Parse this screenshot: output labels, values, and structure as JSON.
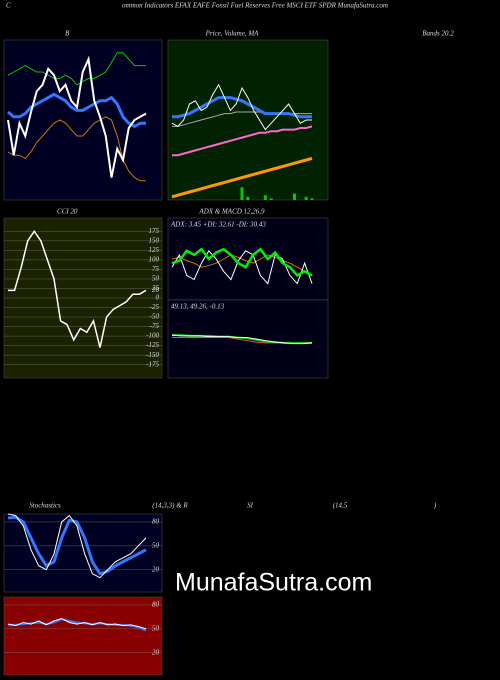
{
  "header": {
    "c": "C",
    "title": "ommon Indicators EFAX EAFE Fossil Fuel Reserves Free MSCI ETF SPDR MunafaSutra.com",
    "bands": "Bands 20.2",
    "watermark": "MunafaSutra.com",
    "stoch_title": [
      "Stochastics",
      "(14,3,3) & R",
      "SI",
      "(14,5",
      ")"
    ]
  },
  "chart_data": [
    {
      "type": "line",
      "title": "B",
      "background": "#000022",
      "ylim": [
        0,
        100
      ],
      "series": [
        {
          "color": "#00cc00",
          "width": 1,
          "values": [
            78,
            80,
            82,
            84,
            82,
            80,
            80,
            78,
            76,
            76,
            78,
            76,
            72,
            74,
            76,
            76,
            78,
            80,
            86,
            92,
            92,
            88,
            84,
            84,
            84
          ]
        },
        {
          "color": "#cc7700",
          "width": 1,
          "values": [
            30,
            28,
            28,
            26,
            30,
            36,
            40,
            44,
            48,
            50,
            48,
            44,
            40,
            40,
            44,
            48,
            50,
            52,
            50,
            40,
            25,
            18,
            14,
            12,
            12
          ]
        },
        {
          "color": "#3377ff",
          "width": 3,
          "values": [
            55,
            52,
            52,
            54,
            58,
            60,
            62,
            64,
            66,
            64,
            62,
            58,
            56,
            56,
            58,
            60,
            62,
            62,
            64,
            60,
            52,
            48,
            46,
            48,
            48
          ]
        },
        {
          "color": "#ffffff",
          "width": 2,
          "values": [
            50,
            28,
            48,
            40,
            55,
            68,
            72,
            82,
            78,
            68,
            72,
            62,
            58,
            80,
            88,
            62,
            52,
            40,
            14,
            32,
            25,
            45,
            50,
            52,
            54
          ]
        }
      ]
    },
    {
      "type": "line",
      "title": "Price, Volume, MA",
      "background": "#002200",
      "ylim": [
        0,
        100
      ],
      "series": [
        {
          "color": "#00cc00",
          "width": 3,
          "style": "bar",
          "values": [
            0,
            0,
            0,
            0,
            0,
            0,
            0,
            0,
            0,
            0,
            0,
            0,
            8,
            2,
            0,
            0,
            3,
            1,
            0,
            0,
            0,
            4,
            0,
            2,
            1
          ]
        },
        {
          "color": "#ff9900",
          "width": 3,
          "values": [
            2,
            3,
            4,
            5,
            6,
            7,
            8,
            9,
            10,
            11,
            12,
            13,
            14,
            15,
            16,
            17,
            18,
            19,
            20,
            21,
            22,
            23,
            24,
            25,
            26
          ]
        },
        {
          "color": "#ff66cc",
          "width": 2,
          "values": [
            28,
            28,
            29,
            30,
            31,
            32,
            33,
            34,
            35,
            36,
            37,
            38,
            39,
            40,
            41,
            42,
            42,
            43,
            43,
            44,
            44,
            44,
            45,
            45,
            46
          ]
        },
        {
          "color": "#aaaaaa",
          "width": 1,
          "values": [
            46,
            46,
            47,
            48,
            49,
            50,
            51,
            52,
            53,
            54,
            54,
            55,
            55,
            55,
            55,
            55,
            54,
            54,
            54,
            54,
            54,
            54,
            54,
            54,
            54
          ]
        },
        {
          "color": "#3377ff",
          "width": 3,
          "values": [
            52,
            52,
            53,
            54,
            56,
            58,
            60,
            62,
            64,
            64,
            64,
            63,
            62,
            60,
            58,
            56,
            54,
            54,
            54,
            54,
            54,
            53,
            52,
            52,
            52
          ]
        },
        {
          "color": "#ffffff",
          "width": 1,
          "values": [
            48,
            46,
            50,
            60,
            62,
            56,
            58,
            66,
            72,
            64,
            56,
            60,
            70,
            64,
            56,
            50,
            44,
            48,
            52,
            56,
            60,
            54,
            48,
            50,
            50
          ]
        }
      ]
    },
    {
      "type": "line",
      "title": "CCI 20",
      "background": "#1a2200",
      "grid": true,
      "ylim": [
        -210,
        210
      ],
      "yticks": [
        175,
        150,
        125,
        100,
        75,
        50,
        25,
        0,
        -25,
        -50,
        -75,
        -100,
        -125,
        -150,
        -175
      ],
      "end_label": true,
      "series": [
        {
          "color": "#ffffff",
          "width": 1.5,
          "values": [
            20,
            20,
            80,
            150,
            175,
            150,
            100,
            50,
            -60,
            -70,
            -110,
            -80,
            -90,
            -60,
            -130,
            -50,
            -30,
            -20,
            -10,
            10,
            10,
            20
          ]
        }
      ]
    },
    {
      "type": "line",
      "title": "ADX  & MACD 12,26,9",
      "subtitle": "ADX: 3.45 +DI: 32.61 -DI: 30.43",
      "background": "#000018",
      "ylim": [
        0,
        100
      ],
      "series": [
        {
          "color": "#cc7700",
          "width": 1,
          "values": [
            50,
            52,
            48,
            45,
            40,
            42,
            45,
            50,
            55,
            52,
            48,
            45,
            50,
            55,
            52,
            48,
            45,
            40,
            35,
            30
          ]
        },
        {
          "color": "#ffffff",
          "width": 1,
          "values": [
            40,
            55,
            30,
            25,
            45,
            60,
            50,
            35,
            25,
            48,
            60,
            55,
            30,
            20,
            55,
            50,
            30,
            20,
            45,
            20
          ]
        },
        {
          "color": "#00ee00",
          "width": 2.5,
          "values": [
            45,
            48,
            60,
            55,
            62,
            50,
            58,
            62,
            55,
            45,
            40,
            55,
            62,
            50,
            58,
            45,
            40,
            30,
            35,
            30
          ]
        }
      ]
    },
    {
      "type": "line",
      "subtitle": "49.13, 49.26, -0.13",
      "background": "#000018",
      "ylim": [
        0,
        100
      ],
      "series": [
        {
          "color": "#ff4444",
          "width": 1,
          "values": [
            52,
            52,
            52,
            52,
            52,
            52,
            52,
            50,
            48,
            46,
            45,
            45,
            45,
            45,
            45,
            45
          ]
        },
        {
          "color": "#00cc00",
          "width": 2,
          "values": [
            55,
            55,
            54,
            54,
            54,
            53,
            53,
            52,
            51,
            49,
            47,
            46,
            45,
            45,
            45,
            45
          ]
        },
        {
          "color": "#ffffff",
          "width": 1,
          "values": [
            55,
            54,
            54,
            54,
            53,
            53,
            53,
            52,
            52,
            50,
            48,
            46,
            45,
            44,
            44,
            45
          ]
        }
      ]
    },
    {
      "type": "line",
      "background": "#000022",
      "grid": true,
      "ylim": [
        -8,
        90
      ],
      "yticks": [
        80,
        50,
        20
      ],
      "series": [
        {
          "color": "#3377ff",
          "width": 3,
          "values": [
            85,
            86,
            80,
            60,
            40,
            25,
            30,
            60,
            82,
            80,
            60,
            30,
            15,
            18,
            25,
            30,
            35,
            40,
            45
          ]
        },
        {
          "color": "#ffffff",
          "width": 1,
          "values": [
            90,
            88,
            75,
            45,
            25,
            20,
            40,
            80,
            88,
            75,
            40,
            15,
            10,
            20,
            30,
            35,
            40,
            50,
            60
          ]
        }
      ]
    },
    {
      "type": "line",
      "background": "#880000",
      "grid": true,
      "ylim": [
        -8,
        90
      ],
      "yticks": [
        80,
        50,
        20
      ],
      "series": [
        {
          "color": "#3377ff",
          "width": 2,
          "values": [
            55,
            55,
            56,
            57,
            58,
            56,
            58,
            62,
            60,
            58,
            57,
            56,
            57,
            56,
            55,
            55,
            54,
            52,
            48
          ]
        },
        {
          "color": "#ffffff",
          "width": 1,
          "values": [
            56,
            54,
            58,
            56,
            60,
            55,
            60,
            63,
            58,
            56,
            58,
            55,
            58,
            55,
            56,
            54,
            55,
            53,
            50
          ]
        }
      ]
    }
  ]
}
